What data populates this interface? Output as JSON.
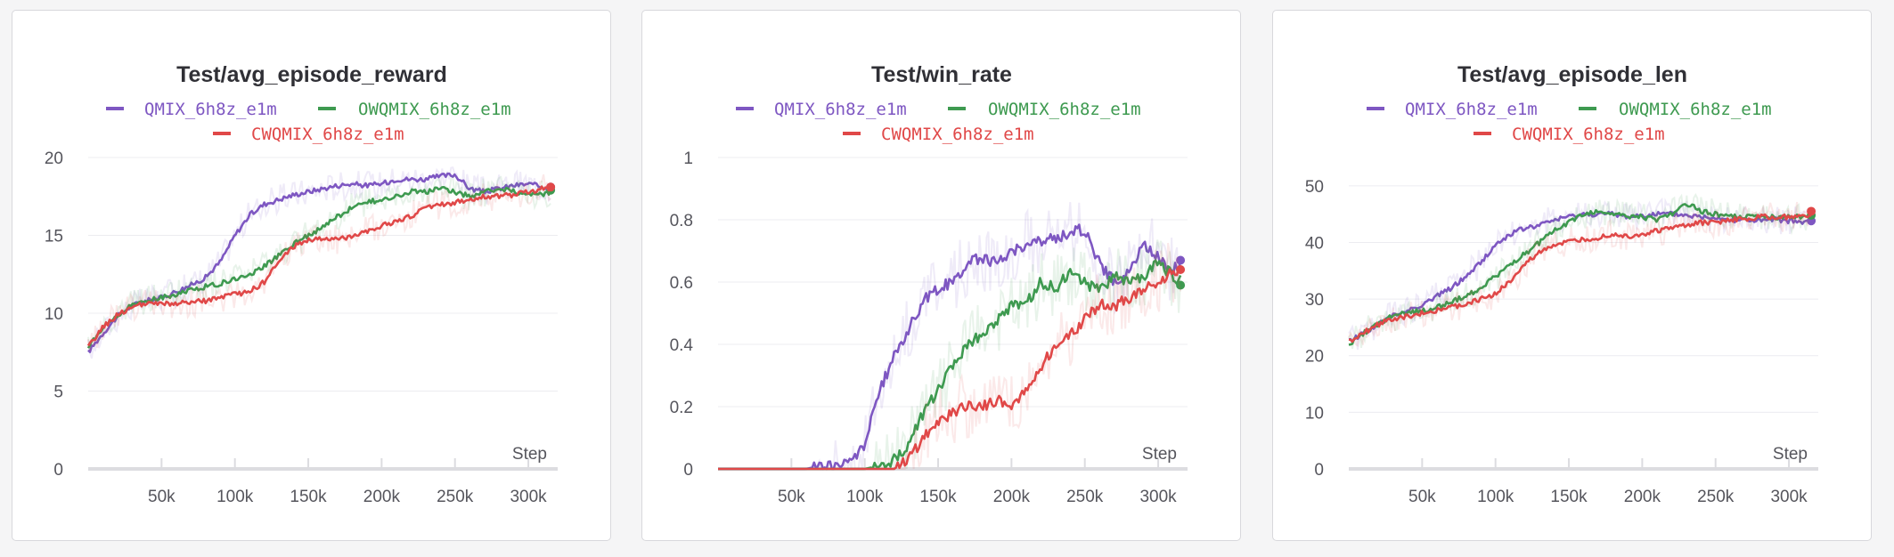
{
  "colors": {
    "QMIX_6h8z_e1m": "#7e57c2",
    "OWQMIX_6h8z_e1m": "#3e9a50",
    "CWQMIX_6h8z_e1m": "#e04848"
  },
  "chart_data": [
    {
      "type": "line",
      "title": "Test/avg_episode_reward",
      "xlabel": "Step",
      "ylabel": "",
      "xlim": [
        0,
        320000
      ],
      "ylim": [
        0,
        20
      ],
      "xticks": [
        "50k",
        "100k",
        "150k",
        "200k",
        "250k",
        "300k"
      ],
      "yticks": [
        "0",
        "5",
        "10",
        "15",
        "20"
      ],
      "grid": true,
      "legend_position": "top-center",
      "series": [
        {
          "name": "QMIX_6h8z_e1m",
          "x": [
            0,
            10000,
            20000,
            30000,
            40000,
            50000,
            60000,
            70000,
            80000,
            90000,
            100000,
            110000,
            120000,
            130000,
            140000,
            150000,
            160000,
            170000,
            180000,
            190000,
            200000,
            210000,
            220000,
            230000,
            240000,
            250000,
            260000,
            270000,
            280000,
            290000,
            300000,
            310000,
            320000
          ],
          "y": [
            7.5,
            8.7,
            9.8,
            10.5,
            10.8,
            11.0,
            11.4,
            11.8,
            12.3,
            13.3,
            15.0,
            16.3,
            17.0,
            17.3,
            17.6,
            17.8,
            18.0,
            18.2,
            18.3,
            18.2,
            18.3,
            18.6,
            18.6,
            18.6,
            18.8,
            18.9,
            18.0,
            17.8,
            18.0,
            18.2,
            18.3,
            18.1,
            18.1
          ]
        },
        {
          "name": "OWQMIX_6h8z_e1m",
          "x": [
            0,
            10000,
            20000,
            30000,
            40000,
            50000,
            60000,
            70000,
            80000,
            90000,
            100000,
            110000,
            120000,
            130000,
            140000,
            150000,
            160000,
            170000,
            180000,
            190000,
            200000,
            210000,
            220000,
            230000,
            240000,
            250000,
            260000,
            270000,
            280000,
            290000,
            300000,
            310000,
            320000
          ],
          "y": [
            7.8,
            9.0,
            9.9,
            10.5,
            10.8,
            11.0,
            11.2,
            11.5,
            11.7,
            11.9,
            12.2,
            12.5,
            13.0,
            13.7,
            14.5,
            15.0,
            15.5,
            16.2,
            16.8,
            17.2,
            17.2,
            17.5,
            17.8,
            17.8,
            18.0,
            17.8,
            17.5,
            17.8,
            18.0,
            17.8,
            17.7,
            17.6,
            17.9
          ]
        },
        {
          "name": "CWQMIX_6h8z_e1m",
          "x": [
            0,
            10000,
            20000,
            30000,
            40000,
            50000,
            60000,
            70000,
            80000,
            90000,
            100000,
            110000,
            120000,
            130000,
            140000,
            150000,
            160000,
            170000,
            180000,
            190000,
            200000,
            210000,
            220000,
            230000,
            240000,
            250000,
            260000,
            270000,
            280000,
            290000,
            300000,
            310000,
            320000
          ],
          "y": [
            7.8,
            9.1,
            9.9,
            10.4,
            10.6,
            10.6,
            10.6,
            10.7,
            10.8,
            11.0,
            11.2,
            11.4,
            12.0,
            13.3,
            14.3,
            14.7,
            14.8,
            14.7,
            15.0,
            15.3,
            15.6,
            15.9,
            16.2,
            16.8,
            17.0,
            17.1,
            17.3,
            17.5,
            17.5,
            17.6,
            17.8,
            18.0,
            18.1
          ]
        }
      ]
    },
    {
      "type": "line",
      "title": "Test/win_rate",
      "xlabel": "Step",
      "ylabel": "",
      "xlim": [
        0,
        320000
      ],
      "ylim": [
        0,
        1
      ],
      "xticks": [
        "50k",
        "100k",
        "150k",
        "200k",
        "250k",
        "300k"
      ],
      "yticks": [
        "0",
        "0.2",
        "0.4",
        "0.6",
        "0.8",
        "1"
      ],
      "grid": true,
      "legend_position": "top-center",
      "series": [
        {
          "name": "QMIX_6h8z_e1m",
          "x": [
            0,
            10000,
            20000,
            30000,
            40000,
            50000,
            60000,
            70000,
            80000,
            90000,
            100000,
            110000,
            120000,
            130000,
            140000,
            150000,
            160000,
            170000,
            180000,
            190000,
            200000,
            210000,
            220000,
            230000,
            240000,
            250000,
            260000,
            270000,
            280000,
            290000,
            300000,
            310000,
            320000
          ],
          "y": [
            0,
            0,
            0,
            0,
            0,
            0,
            0,
            0.01,
            0.01,
            0.02,
            0.08,
            0.25,
            0.36,
            0.45,
            0.54,
            0.58,
            0.6,
            0.66,
            0.68,
            0.66,
            0.7,
            0.72,
            0.73,
            0.74,
            0.76,
            0.77,
            0.66,
            0.6,
            0.63,
            0.72,
            0.68,
            0.64,
            0.67
          ]
        },
        {
          "name": "OWQMIX_6h8z_e1m",
          "x": [
            0,
            10000,
            20000,
            30000,
            40000,
            50000,
            60000,
            70000,
            80000,
            90000,
            100000,
            110000,
            120000,
            130000,
            140000,
            150000,
            160000,
            170000,
            180000,
            190000,
            200000,
            210000,
            220000,
            230000,
            240000,
            250000,
            260000,
            270000,
            280000,
            290000,
            300000,
            310000,
            320000
          ],
          "y": [
            0,
            0,
            0,
            0,
            0,
            0,
            0,
            0,
            0,
            0,
            0,
            0.01,
            0.03,
            0.08,
            0.18,
            0.25,
            0.33,
            0.4,
            0.43,
            0.48,
            0.52,
            0.53,
            0.6,
            0.58,
            0.63,
            0.6,
            0.57,
            0.62,
            0.6,
            0.62,
            0.66,
            0.62,
            0.59
          ]
        },
        {
          "name": "CWQMIX_6h8z_e1m",
          "x": [
            0,
            10000,
            20000,
            30000,
            40000,
            50000,
            60000,
            70000,
            80000,
            90000,
            100000,
            110000,
            120000,
            130000,
            140000,
            150000,
            160000,
            170000,
            180000,
            190000,
            200000,
            210000,
            220000,
            230000,
            240000,
            250000,
            260000,
            270000,
            280000,
            290000,
            300000,
            310000,
            320000
          ],
          "y": [
            0,
            0,
            0,
            0,
            0,
            0,
            0,
            0,
            0,
            0,
            0,
            0,
            0,
            0.03,
            0.1,
            0.15,
            0.18,
            0.2,
            0.2,
            0.22,
            0.2,
            0.25,
            0.33,
            0.4,
            0.43,
            0.48,
            0.53,
            0.52,
            0.55,
            0.58,
            0.6,
            0.63,
            0.64
          ]
        }
      ]
    },
    {
      "type": "line",
      "title": "Test/avg_episode_len",
      "xlabel": "Step",
      "ylabel": "",
      "xlim": [
        0,
        320000
      ],
      "ylim": [
        0,
        55
      ],
      "xticks": [
        "50k",
        "100k",
        "150k",
        "200k",
        "250k",
        "300k"
      ],
      "yticks": [
        "0",
        "10",
        "20",
        "30",
        "40",
        "50"
      ],
      "grid": true,
      "legend_position": "top-center",
      "series": [
        {
          "name": "QMIX_6h8z_e1m",
          "x": [
            0,
            10000,
            20000,
            30000,
            40000,
            50000,
            60000,
            70000,
            80000,
            90000,
            100000,
            110000,
            120000,
            130000,
            140000,
            150000,
            160000,
            170000,
            180000,
            190000,
            200000,
            210000,
            220000,
            230000,
            240000,
            250000,
            260000,
            270000,
            280000,
            290000,
            300000,
            310000,
            320000
          ],
          "y": [
            22.5,
            24.0,
            25.5,
            27.0,
            28.0,
            29.0,
            30.5,
            32.0,
            34.0,
            36.5,
            39.5,
            41.5,
            42.5,
            43.0,
            44.0,
            44.5,
            45.0,
            45.0,
            45.0,
            44.5,
            44.8,
            45.0,
            45.0,
            44.8,
            44.5,
            44.5,
            44.0,
            44.0,
            43.8,
            44.0,
            43.8,
            43.5,
            43.8
          ]
        },
        {
          "name": "OWQMIX_6h8z_e1m",
          "x": [
            0,
            10000,
            20000,
            30000,
            40000,
            50000,
            60000,
            70000,
            80000,
            90000,
            100000,
            110000,
            120000,
            130000,
            140000,
            150000,
            160000,
            170000,
            180000,
            190000,
            200000,
            210000,
            220000,
            230000,
            240000,
            250000,
            260000,
            270000,
            280000,
            290000,
            300000,
            310000,
            320000
          ],
          "y": [
            22.0,
            24.0,
            25.5,
            27.0,
            27.5,
            28.0,
            28.5,
            29.5,
            30.5,
            32.0,
            34.0,
            36.0,
            38.0,
            40.0,
            42.0,
            43.5,
            45.0,
            45.5,
            45.0,
            44.5,
            44.5,
            44.0,
            45.0,
            47.0,
            45.5,
            45.0,
            44.5,
            44.5,
            44.5,
            44.5,
            44.5,
            44.5,
            44.8
          ]
        },
        {
          "name": "CWQMIX_6h8z_e1m",
          "x": [
            0,
            10000,
            20000,
            30000,
            40000,
            50000,
            60000,
            70000,
            80000,
            90000,
            100000,
            110000,
            120000,
            130000,
            140000,
            150000,
            160000,
            170000,
            180000,
            190000,
            200000,
            210000,
            220000,
            230000,
            240000,
            250000,
            260000,
            270000,
            280000,
            290000,
            300000,
            310000,
            320000
          ],
          "y": [
            22.5,
            24.0,
            25.5,
            26.5,
            27.0,
            27.5,
            28.0,
            28.5,
            29.0,
            30.0,
            31.0,
            33.0,
            36.0,
            38.5,
            39.5,
            40.0,
            40.5,
            40.8,
            41.5,
            41.0,
            41.5,
            42.0,
            42.5,
            43.0,
            43.5,
            43.5,
            44.0,
            44.0,
            44.5,
            44.5,
            44.5,
            44.5,
            45.5
          ]
        }
      ]
    }
  ]
}
